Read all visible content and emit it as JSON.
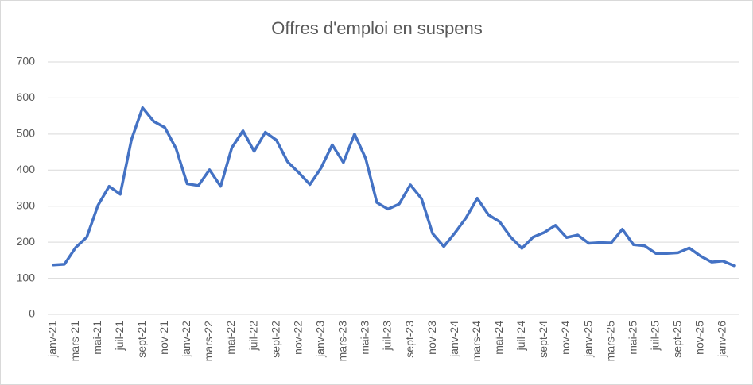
{
  "chart_data": {
    "type": "line",
    "title": "Offres d'emploi en suspens",
    "categories": [
      "janv-21",
      null,
      "mars-21",
      null,
      "mai-21",
      null,
      "juil-21",
      null,
      "sept-21",
      null,
      "nov-21",
      null,
      "janv-22",
      null,
      "mars-22",
      null,
      "mai-22",
      null,
      "juil-22",
      null,
      "sept-22",
      null,
      "nov-22",
      null,
      "janv-23",
      null,
      "mars-23",
      null,
      "mai-23",
      null,
      "juil-23",
      null,
      "sept-23",
      null,
      "nov-23",
      null,
      "janv-24",
      null,
      "mars-24",
      null,
      "mai-24",
      null,
      "juil-24",
      null,
      "sept-24",
      null,
      "nov-24",
      null,
      "janv-25",
      null,
      "mars-25",
      null,
      "mai-25",
      null,
      "juil-25",
      null,
      "sept-25",
      null,
      "nov-25",
      null,
      "janv-26",
      null
    ],
    "values": [
      137,
      139,
      185,
      214,
      302,
      355,
      333,
      484,
      573,
      535,
      518,
      460,
      362,
      357,
      401,
      355,
      462,
      509,
      452,
      505,
      483,
      423,
      393,
      360,
      406,
      470,
      421,
      500,
      432,
      310,
      292,
      306,
      359,
      321,
      224,
      188,
      226,
      268,
      322,
      276,
      257,
      214,
      183,
      214,
      227,
      247,
      213,
      220,
      197,
      199,
      198,
      236,
      193,
      190,
      169,
      169,
      171,
      184,
      162,
      145,
      148,
      135
    ],
    "color": "#4472c4",
    "ylim": [
      0,
      700
    ],
    "yticks": [
      0,
      100,
      200,
      300,
      400,
      500,
      600,
      700
    ],
    "grid": true
  }
}
